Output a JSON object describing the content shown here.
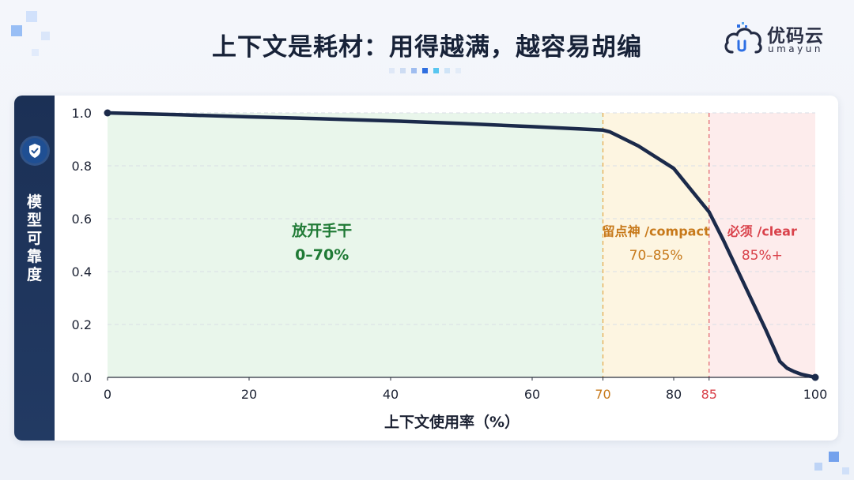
{
  "header": {
    "title": "上下文是耗材：用得越满，越容易胡编"
  },
  "logo": {
    "name_cn": "优码云",
    "name_en": "umayun",
    "icon": "cloud-logo-icon"
  },
  "sidebar": {
    "icon": "shield-check-icon",
    "ylabel_chars": [
      "模",
      "型",
      "可",
      "靠",
      "度"
    ]
  },
  "colors": {
    "line": "#1b2a4a",
    "safe_zone": "#e9f6eb",
    "caution_zone": "#fdf5e1",
    "danger_zone": "#fdecec",
    "safe_text": "#1f7a35",
    "caution_text": "#c7791a",
    "danger_text": "#d9414a"
  },
  "chart_data": {
    "type": "line",
    "title": "上下文是耗材：用得越满，越容易胡编",
    "xlabel": "上下文使用率（%）",
    "ylabel": "模型可靠度",
    "xlim": [
      0,
      100
    ],
    "ylim": [
      0,
      1.0
    ],
    "x_ticks": [
      0,
      20,
      40,
      60,
      70,
      80,
      85,
      100
    ],
    "y_ticks": [
      0.0,
      0.2,
      0.4,
      0.6,
      0.8,
      1.0
    ],
    "y_tick_labels": [
      "0.0",
      "0.2",
      "0.4",
      "0.6",
      "0.8",
      "1.0"
    ],
    "grid": true,
    "series": [
      {
        "x": [
          0,
          10,
          20,
          30,
          40,
          50,
          60,
          70,
          71,
          72,
          75,
          80,
          85,
          87,
          90,
          93,
          95,
          96,
          97,
          98,
          100
        ],
        "y": [
          1.0,
          0.993,
          0.985,
          0.978,
          0.97,
          0.96,
          0.948,
          0.935,
          0.928,
          0.915,
          0.875,
          0.79,
          0.625,
          0.52,
          0.35,
          0.18,
          0.06,
          0.035,
          0.022,
          0.012,
          0.0
        ]
      }
    ],
    "zones": [
      {
        "x_from": 0,
        "x_to": 70,
        "label": "放开手干",
        "range_label": "0–70%"
      },
      {
        "x_from": 70,
        "x_to": 85,
        "label": "留点神 /compact",
        "range_label": "70–85%"
      },
      {
        "x_from": 85,
        "x_to": 100,
        "label": "必须 /clear",
        "range_label": "85%+"
      }
    ],
    "threshold_lines": [
      70,
      85
    ]
  }
}
